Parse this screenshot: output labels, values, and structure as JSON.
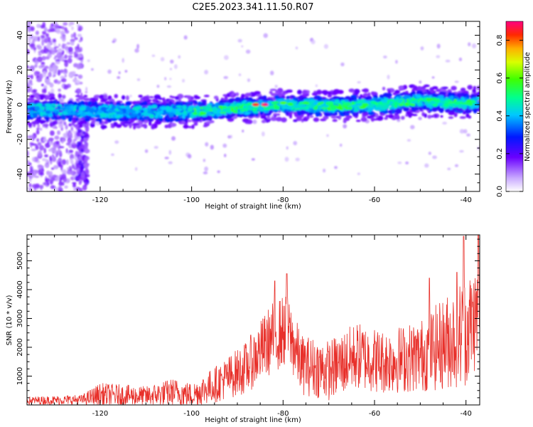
{
  "title": "C2E5.2023.341.11.50.R07",
  "chart_data": [
    {
      "type": "heatmap",
      "xlabel": "Height of straight line (km)",
      "ylabel": "Frequency (Hz)",
      "xlim": [
        -136,
        -37
      ],
      "ylim": [
        -50,
        48
      ],
      "xticks": [
        -120,
        -100,
        -80,
        -60,
        -40
      ],
      "yticks": [
        -40,
        -20,
        0,
        20,
        40
      ],
      "colorbar": {
        "label": "Normalized spectral amplitude",
        "range": [
          0,
          0.9
        ],
        "ticks": [
          "0.0",
          "0.2",
          "0.4",
          "0.6",
          "0.8"
        ]
      },
      "band_center_hz": [
        {
          "x": -136,
          "y": -3
        },
        {
          "x": -120,
          "y": -4
        },
        {
          "x": -100,
          "y": -4
        },
        {
          "x": -90,
          "y": -2
        },
        {
          "x": -80,
          "y": 0
        },
        {
          "x": -70,
          "y": -1
        },
        {
          "x": -60,
          "y": 0
        },
        {
          "x": -50,
          "y": 2
        },
        {
          "x": -40,
          "y": 1
        }
      ],
      "peaks": [
        {
          "x": -86,
          "y": 0,
          "value": 0.85
        },
        {
          "x": -84,
          "y": 0,
          "value": 0.9
        },
        {
          "x": -80,
          "y": 1,
          "value": 0.6
        },
        {
          "x": -75,
          "y": 1,
          "value": 0.55
        },
        {
          "x": -62,
          "y": 0,
          "value": 0.55
        },
        {
          "x": -48,
          "y": 3,
          "value": 0.55
        }
      ]
    },
    {
      "type": "line",
      "xlabel": "Height of straight line (km)",
      "ylabel": "SNR (10 * v/v)",
      "xlim": [
        -136,
        -37
      ],
      "ylim": [
        0,
        5900
      ],
      "xticks": [
        -120,
        -100,
        -80,
        -60,
        -40
      ],
      "yticks": [
        1000,
        2000,
        3000,
        4000,
        5000
      ],
      "color": "#e8302a",
      "envelope": [
        {
          "x": -136,
          "mean": 150,
          "amp": 200
        },
        {
          "x": -124,
          "mean": 180,
          "amp": 250
        },
        {
          "x": -120,
          "mean": 350,
          "amp": 600
        },
        {
          "x": -110,
          "mean": 300,
          "amp": 500
        },
        {
          "x": -104,
          "mean": 450,
          "amp": 700
        },
        {
          "x": -100,
          "mean": 350,
          "amp": 600
        },
        {
          "x": -95,
          "mean": 700,
          "amp": 900
        },
        {
          "x": -88,
          "mean": 1300,
          "amp": 1300
        },
        {
          "x": -82,
          "mean": 2400,
          "amp": 1800
        },
        {
          "x": -79,
          "mean": 2600,
          "amp": 1800
        },
        {
          "x": -76,
          "mean": 1400,
          "amp": 1500
        },
        {
          "x": -70,
          "mean": 1200,
          "amp": 1500
        },
        {
          "x": -64,
          "mean": 1700,
          "amp": 1700
        },
        {
          "x": -58,
          "mean": 1500,
          "amp": 1600
        },
        {
          "x": -50,
          "mean": 1700,
          "amp": 1800
        },
        {
          "x": -44,
          "mean": 2200,
          "amp": 2400
        },
        {
          "x": -40,
          "mean": 2600,
          "amp": 2800
        },
        {
          "x": -37,
          "mean": 3200,
          "amp": 2600
        }
      ],
      "peaks": [
        {
          "x": -81.8,
          "value": 4300
        },
        {
          "x": -79.2,
          "value": 4550
        },
        {
          "x": -48,
          "value": 4400
        },
        {
          "x": -42,
          "value": 4600
        },
        {
          "x": -40.5,
          "value": 5850
        },
        {
          "x": -37.3,
          "value": 5900
        }
      ]
    }
  ]
}
